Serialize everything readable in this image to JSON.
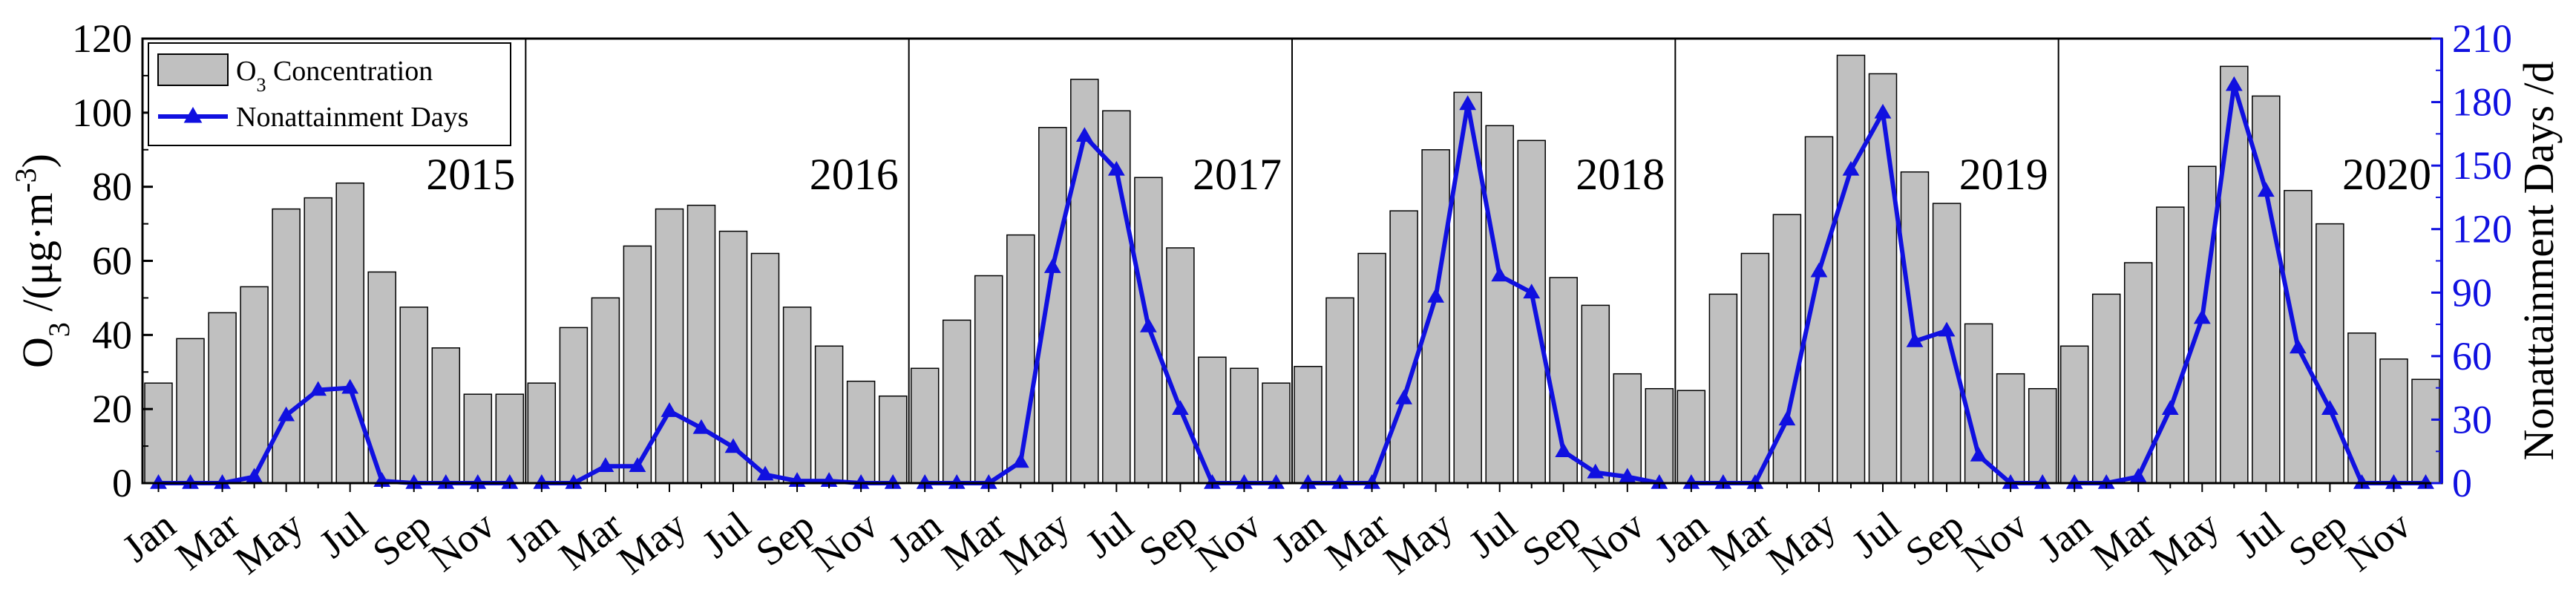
{
  "chart_data": {
    "type": "bar",
    "y_left": {
      "label_main": "O",
      "label_sub": "3",
      "label_rest": " /(μg·m",
      "label_sup": "-3",
      "label_end": ")",
      "lim": [
        0,
        120
      ],
      "ticks": [
        "0",
        "20",
        "40",
        "60",
        "80",
        "100",
        "120"
      ]
    },
    "y_right": {
      "label": "Nonattainment Days /d",
      "lim": [
        0,
        210
      ],
      "ticks": [
        "0",
        "30",
        "60",
        "90",
        "120",
        "150",
        "180",
        "210"
      ],
      "color": "#1010e0"
    },
    "x_tick_labels": [
      "Jan",
      "Mar",
      "May",
      "Jul",
      "Sep",
      "Nov"
    ],
    "legend": {
      "bar_main": "O",
      "bar_sub": "3",
      "bar_rest": " Concentration",
      "line": "Nonattainment Days"
    },
    "colors": {
      "bar_fill": "#c0c0c0",
      "bar_edge": "#000000",
      "line": "#1010e0"
    },
    "years": [
      {
        "year": "2015",
        "o3": [
          27,
          39,
          46,
          53,
          74,
          77,
          81,
          57,
          47.5,
          36.5,
          24,
          24
        ],
        "days": [
          0,
          0,
          0,
          3,
          32,
          44,
          45,
          1,
          0,
          0,
          0,
          0
        ]
      },
      {
        "year": "2016",
        "o3": [
          27,
          42,
          50,
          64,
          74,
          75,
          68,
          62,
          47.5,
          37,
          27.5,
          23.5
        ],
        "days": [
          0,
          0,
          8,
          8,
          34,
          26,
          17,
          4,
          1,
          1,
          0,
          0
        ]
      },
      {
        "year": "2017",
        "o3": [
          31,
          44,
          56,
          67,
          96,
          109,
          100.5,
          82.5,
          63.5,
          34,
          31,
          27
        ],
        "days": [
          0,
          0,
          0,
          10,
          102,
          164,
          148,
          74,
          35,
          0,
          0,
          0
        ]
      },
      {
        "year": "2018",
        "o3": [
          31.5,
          50,
          62,
          73.5,
          90,
          105.5,
          96.5,
          92.5,
          55.5,
          48,
          29.5,
          25.5
        ],
        "days": [
          0,
          0,
          0,
          40,
          88,
          179,
          98,
          90,
          15,
          5,
          3,
          0
        ]
      },
      {
        "year": "2019",
        "o3": [
          25,
          51,
          62,
          72.5,
          93.5,
          115.5,
          110.5,
          84,
          75.5,
          43,
          29.5,
          25.5
        ],
        "days": [
          0,
          0,
          0,
          30,
          100,
          148,
          175,
          67,
          72,
          13,
          0,
          0
        ]
      },
      {
        "year": "2020",
        "o3": [
          37,
          51,
          59.5,
          74.5,
          85.5,
          112.5,
          104.5,
          79,
          70,
          40.5,
          33.5,
          28
        ],
        "days": [
          0,
          0,
          3,
          35,
          78,
          188,
          138,
          64,
          35,
          0,
          0,
          0
        ]
      }
    ]
  }
}
